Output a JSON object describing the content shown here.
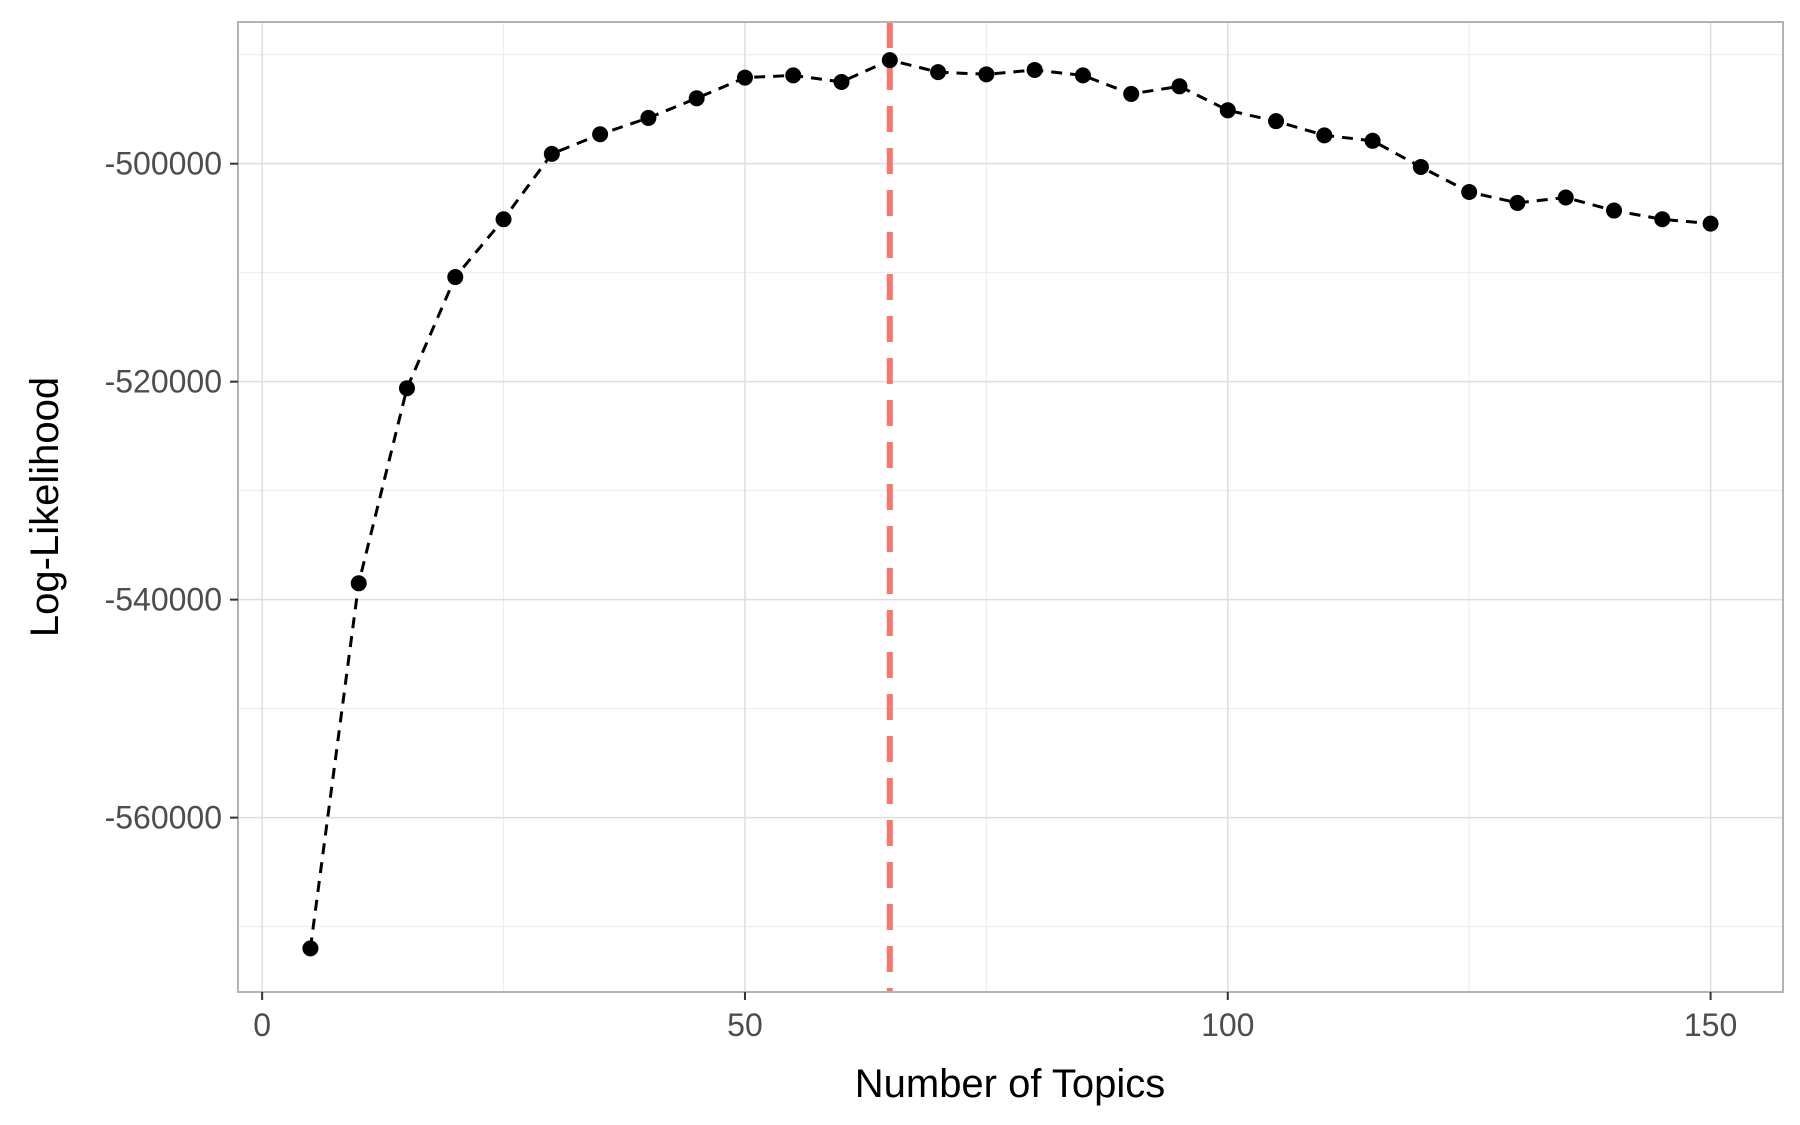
{
  "chart_data": {
    "type": "line",
    "title": "",
    "xlabel": "Number of Topics",
    "ylabel": "Log-Likelihood",
    "xlim": [
      -2.5,
      157.5
    ],
    "ylim": [
      -576000,
      -487000
    ],
    "x_ticks": [
      0,
      50,
      100,
      150
    ],
    "x_tick_labels": [
      "0",
      "50",
      "100",
      "150"
    ],
    "y_ticks": [
      -560000,
      -540000,
      -520000,
      -500000
    ],
    "y_tick_labels": [
      "-560000",
      "-540000",
      "-520000",
      "-500000"
    ],
    "grid": true,
    "legend": "none",
    "series": [
      {
        "x": [
          5,
          10,
          15,
          20,
          25,
          30,
          35,
          40,
          45,
          50,
          55,
          60,
          65,
          70,
          75,
          80,
          85,
          90,
          95,
          100,
          105,
          110,
          115,
          120,
          125,
          130,
          135,
          140,
          145,
          150
        ],
        "values": [
          -572000,
          -538500,
          -520600,
          -510400,
          -505100,
          -499100,
          -497300,
          -495800,
          -494000,
          -492100,
          -491900,
          -492500,
          -490500,
          -491600,
          -491800,
          -491400,
          -491900,
          -493600,
          -492900,
          -495100,
          -496100,
          -497400,
          -497900,
          -500300,
          -502600,
          -503600,
          -503100,
          -504300,
          -505100,
          -505500
        ],
        "line_style": "dashed",
        "color": "#000000"
      }
    ],
    "reference_lines": [
      {
        "axis": "x",
        "value": 65,
        "color": "#f8766d",
        "line_style": "dashed"
      }
    ]
  }
}
